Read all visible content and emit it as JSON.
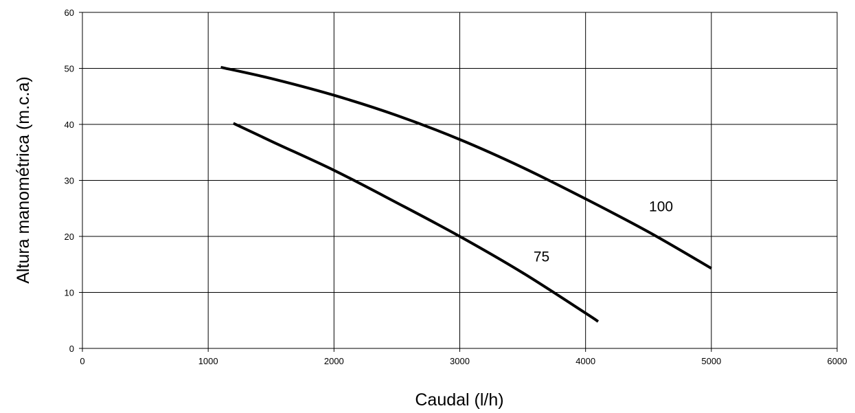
{
  "chart_data": {
    "type": "line",
    "title": "",
    "xlabel": "Caudal (l/h)",
    "ylabel": "Altura manométrica (m.c.a)",
    "xlim": [
      0,
      6000
    ],
    "ylim": [
      0,
      60
    ],
    "x_ticks": [
      0,
      1000,
      2000,
      3000,
      4000,
      5000,
      6000
    ],
    "y_ticks": [
      0,
      10,
      20,
      30,
      40,
      50,
      60
    ],
    "grid": true,
    "legend": "none",
    "line_color": "#000000",
    "grid_color": "#000000",
    "series": [
      {
        "name": "100",
        "x": [
          1100,
          1500,
          2000,
          2500,
          3000,
          3500,
          4000,
          4500,
          5000
        ],
        "y": [
          50.2,
          48.2,
          45.2,
          41.6,
          37.3,
          32.3,
          26.7,
          20.8,
          14.3
        ],
        "label_at": [
          4600,
          24.5
        ]
      },
      {
        "name": "75",
        "x": [
          1200,
          1500,
          2000,
          2500,
          3000,
          3500,
          4000,
          4100
        ],
        "y": [
          40.2,
          37.0,
          31.8,
          26.0,
          20.0,
          13.5,
          6.3,
          4.8
        ],
        "label_at": [
          3650,
          15.5
        ]
      }
    ]
  }
}
